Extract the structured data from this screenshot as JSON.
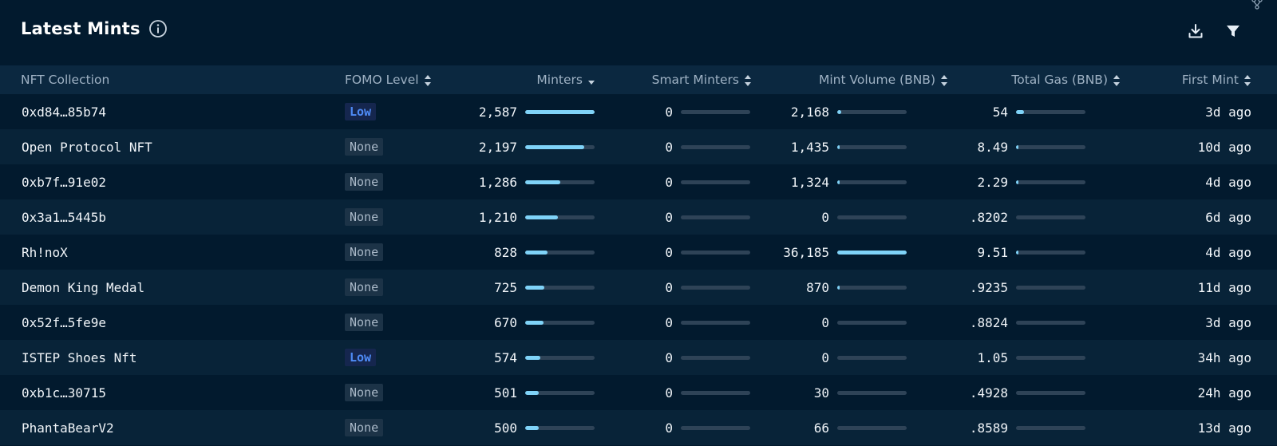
{
  "panel": {
    "title": "Latest Mints",
    "icons": {
      "info": "info-icon",
      "download": "download-icon",
      "filter": "filter-icon",
      "corner": "branch-icon"
    }
  },
  "columns": {
    "collection": "NFT Collection",
    "fomo": "FOMO Level",
    "minters": "Minters",
    "smart_minters": "Smart Minters",
    "mint_volume": "Mint Volume (BNB)",
    "total_gas": "Total Gas (BNB)",
    "first_mint": "First Mint"
  },
  "colors": {
    "background": "#021a2e",
    "header_row": "#0b2840",
    "bar_fill": "#7fd3f8",
    "bar_track": "#2e4357",
    "low_badge_text": "#4f8cf7"
  },
  "rows": [
    {
      "name": "0xd84…85b74",
      "fomo": "Low",
      "minters": "2,587",
      "minters_frac": 1.0,
      "smart": "0",
      "smart_frac": 0,
      "volume": "2,168",
      "volume_frac": 0.06,
      "gas": "54",
      "gas_frac": 0.12,
      "first": "3d ago"
    },
    {
      "name": "Open Protocol NFT",
      "fomo": "None",
      "minters": "2,197",
      "minters_frac": 0.85,
      "smart": "0",
      "smart_frac": 0,
      "volume": "1,435",
      "volume_frac": 0.04,
      "gas": "8.49",
      "gas_frac": 0.02,
      "first": "10d ago"
    },
    {
      "name": "0xb7f…91e02",
      "fomo": "None",
      "minters": "1,286",
      "minters_frac": 0.5,
      "smart": "0",
      "smart_frac": 0,
      "volume": "1,324",
      "volume_frac": 0.037,
      "gas": "2.29",
      "gas_frac": 0.01,
      "first": "4d ago"
    },
    {
      "name": "0x3a1…5445b",
      "fomo": "None",
      "minters": "1,210",
      "minters_frac": 0.47,
      "smart": "0",
      "smart_frac": 0,
      "volume": "0",
      "volume_frac": 0,
      "gas": ".8202",
      "gas_frac": 0,
      "first": "6d ago"
    },
    {
      "name": "Rh!noX",
      "fomo": "None",
      "minters": "828",
      "minters_frac": 0.32,
      "smart": "0",
      "smart_frac": 0,
      "volume": "36,185",
      "volume_frac": 1.0,
      "gas": "9.51",
      "gas_frac": 0.02,
      "first": "4d ago"
    },
    {
      "name": "Demon King Medal",
      "fomo": "None",
      "minters": "725",
      "minters_frac": 0.28,
      "smart": "0",
      "smart_frac": 0,
      "volume": "870",
      "volume_frac": 0.024,
      "gas": ".9235",
      "gas_frac": 0,
      "first": "11d ago"
    },
    {
      "name": "0x52f…5fe9e",
      "fomo": "None",
      "minters": "670",
      "minters_frac": 0.26,
      "smart": "0",
      "smart_frac": 0,
      "volume": "0",
      "volume_frac": 0,
      "gas": ".8824",
      "gas_frac": 0,
      "first": "3d ago"
    },
    {
      "name": "ISTEP Shoes Nft",
      "fomo": "Low",
      "minters": "574",
      "minters_frac": 0.22,
      "smart": "0",
      "smart_frac": 0,
      "volume": "0",
      "volume_frac": 0,
      "gas": "1.05",
      "gas_frac": 0,
      "first": "34h ago"
    },
    {
      "name": "0xb1c…30715",
      "fomo": "None",
      "minters": "501",
      "minters_frac": 0.19,
      "smart": "0",
      "smart_frac": 0,
      "volume": "30",
      "volume_frac": 0,
      "gas": ".4928",
      "gas_frac": 0,
      "first": "24h ago"
    },
    {
      "name": "PhantaBearV2",
      "fomo": "None",
      "minters": "500",
      "minters_frac": 0.19,
      "smart": "0",
      "smart_frac": 0,
      "volume": "66",
      "volume_frac": 0,
      "gas": ".8589",
      "gas_frac": 0,
      "first": "13d ago"
    }
  ]
}
